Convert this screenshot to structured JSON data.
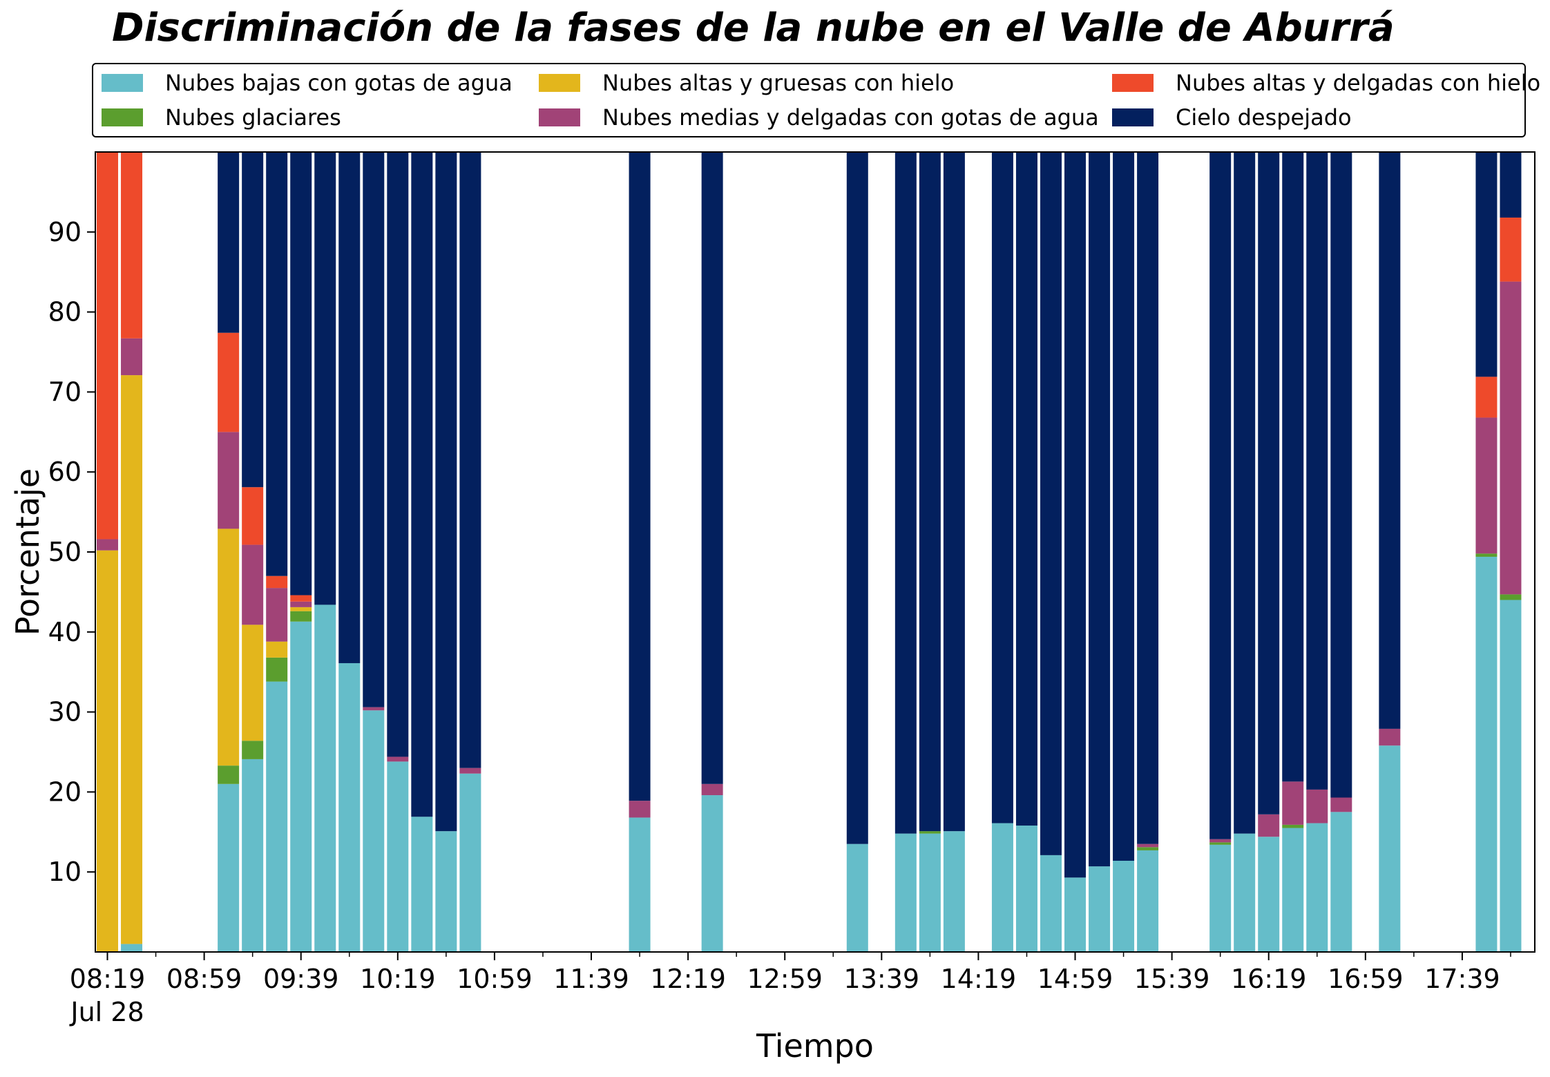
{
  "chart_data": {
    "type": "bar",
    "stacked": true,
    "title": "Discriminación de la fases de la nube en el Valle de Aburrá",
    "xlabel": "Tiempo",
    "ylabel": "Porcentaje",
    "ylim": [
      0,
      100
    ],
    "yticks": [
      10,
      20,
      30,
      40,
      50,
      60,
      70,
      80,
      90
    ],
    "xlim": [
      "08:14",
      "18:09"
    ],
    "xticks": [
      "08:19",
      "08:59",
      "09:39",
      "10:19",
      "10:59",
      "11:39",
      "12:19",
      "12:59",
      "13:39",
      "14:19",
      "14:59",
      "15:39",
      "16:19",
      "16:59",
      "17:39"
    ],
    "xtick_sublabel": "Jul 28",
    "legend_location": "top",
    "grid": false,
    "categories": [
      "08:19",
      "08:29",
      "09:09",
      "09:19",
      "09:29",
      "09:39",
      "09:49",
      "09:59",
      "10:09",
      "10:19",
      "10:29",
      "10:39",
      "10:49",
      "11:59",
      "12:29",
      "13:29",
      "13:49",
      "13:59",
      "14:09",
      "14:29",
      "14:39",
      "14:49",
      "14:59",
      "15:09",
      "15:19",
      "15:29",
      "15:59",
      "16:09",
      "16:19",
      "16:29",
      "16:39",
      "16:49",
      "17:09",
      "17:49",
      "17:59"
    ],
    "series": [
      {
        "name": "Nubes bajas con gotas de agua",
        "color": "#65BDC9",
        "values": [
          0,
          1,
          21,
          24.1,
          33.8,
          41.3,
          43.4,
          36.1,
          30.2,
          23.8,
          16.9,
          15.1,
          22.3,
          16.8,
          19.6,
          13.5,
          14.8,
          14.8,
          15.1,
          16.1,
          15.8,
          12.1,
          9.3,
          10.7,
          11.4,
          12.7,
          13.4,
          14.8,
          14.4,
          15.5,
          16.1,
          17.5,
          25.8,
          49.4,
          44
        ]
      },
      {
        "name": "Nubes glaciares",
        "color": "#5B9E2E",
        "values": [
          0,
          0,
          2.3,
          2.3,
          3,
          1.3,
          0,
          0,
          0,
          0,
          0,
          0,
          0,
          0,
          0,
          0,
          0,
          0.3,
          0,
          0,
          0,
          0,
          0,
          0,
          0,
          0.4,
          0.3,
          0,
          0,
          0.4,
          0,
          0,
          0,
          0.4,
          0.7
        ]
      },
      {
        "name": "Nubes altas y gruesas con hielo",
        "color": "#E3B61C",
        "values": [
          50.2,
          71.1,
          29.6,
          14.5,
          2,
          0.5,
          0,
          0,
          0,
          0,
          0,
          0,
          0,
          0,
          0,
          0,
          0,
          0,
          0,
          0,
          0,
          0,
          0,
          0,
          0,
          0,
          0,
          0,
          0,
          0,
          0,
          0,
          0,
          0,
          0
        ]
      },
      {
        "name": "Nubes medias y delgadas con gotas de agua",
        "color": "#A14377",
        "values": [
          1.4,
          4.6,
          12.1,
          10,
          6.7,
          0.7,
          0,
          0,
          0.4,
          0.6,
          0,
          0,
          0.7,
          2.1,
          1.4,
          0,
          0,
          0,
          0,
          0,
          0,
          0,
          0,
          0,
          0,
          0.4,
          0.4,
          0,
          2.8,
          5.4,
          4.2,
          1.8,
          2.1,
          17,
          39.1
        ]
      },
      {
        "name": "Nubes altas y delgadas con hielo",
        "color": "#EE4A2B",
        "values": [
          48.4,
          23.3,
          12.4,
          7.2,
          1.5,
          0.8,
          0,
          0,
          0,
          0,
          0,
          0,
          0,
          0,
          0,
          0,
          0,
          0,
          0,
          0,
          0,
          0,
          0,
          0,
          0,
          0,
          0,
          0,
          0,
          0,
          0,
          0,
          0,
          5.1,
          8
        ]
      },
      {
        "name": "Cielo despejado",
        "color": "#03205E",
        "values": [
          0,
          0,
          22.6,
          41.9,
          53,
          55.4,
          56.6,
          63.9,
          69.4,
          75.6,
          83.1,
          84.9,
          77,
          81.1,
          79,
          86.5,
          85.2,
          84.9,
          84.9,
          83.9,
          84.2,
          87.9,
          90.7,
          89.3,
          88.6,
          86.5,
          85.9,
          85.2,
          82.8,
          78.7,
          79.7,
          80.7,
          72.1,
          28.1,
          8.2
        ]
      }
    ]
  }
}
